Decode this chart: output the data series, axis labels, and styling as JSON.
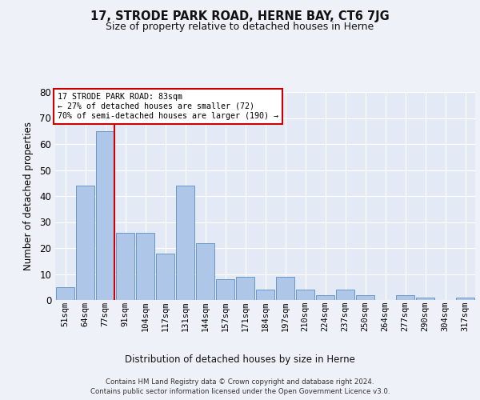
{
  "title": "17, STRODE PARK ROAD, HERNE BAY, CT6 7JG",
  "subtitle": "Size of property relative to detached houses in Herne",
  "xlabel": "Distribution of detached houses by size in Herne",
  "ylabel": "Number of detached properties",
  "categories": [
    "51sqm",
    "64sqm",
    "77sqm",
    "91sqm",
    "104sqm",
    "117sqm",
    "131sqm",
    "144sqm",
    "157sqm",
    "171sqm",
    "184sqm",
    "197sqm",
    "210sqm",
    "224sqm",
    "237sqm",
    "250sqm",
    "264sqm",
    "277sqm",
    "290sqm",
    "304sqm",
    "317sqm"
  ],
  "values": [
    5,
    44,
    65,
    26,
    26,
    18,
    44,
    22,
    8,
    9,
    4,
    9,
    4,
    2,
    4,
    2,
    0,
    2,
    1,
    0,
    1
  ],
  "bar_color": "#aec6e8",
  "bar_edge_color": "#5a8fc2",
  "property_line_x": 2,
  "property_size": "83sqm",
  "pct_smaller": 27,
  "n_smaller": 72,
  "pct_semi_larger": 70,
  "n_semi_larger": 190,
  "annotation_box_color": "#cc0000",
  "ylim": [
    0,
    80
  ],
  "yticks": [
    0,
    10,
    20,
    30,
    40,
    50,
    60,
    70,
    80
  ],
  "background_color": "#eef2f8",
  "plot_bg_color": "#e4eaf5",
  "grid_color": "#ffffff",
  "footer_line1": "Contains HM Land Registry data © Crown copyright and database right 2024.",
  "footer_line2": "Contains public sector information licensed under the Open Government Licence v3.0."
}
